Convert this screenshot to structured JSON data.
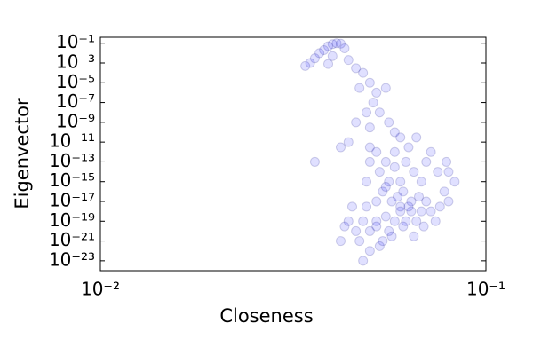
{
  "chart_data": {
    "type": "scatter",
    "xlabel": "Closeness",
    "ylabel": "Eigenvector",
    "xscale": "log",
    "yscale": "log",
    "xlim": [
      0.01,
      0.1
    ],
    "ylim": [
      1e-24,
      0.4
    ],
    "xticks": [
      {
        "value": 0.01,
        "label": "10⁻²"
      },
      {
        "value": 0.1,
        "label": "10⁻¹"
      }
    ],
    "yticks": [
      {
        "value": 0.1,
        "label": "10⁻¹"
      },
      {
        "value": 0.001,
        "label": "10⁻³"
      },
      {
        "value": 1e-05,
        "label": "10⁻⁵"
      },
      {
        "value": 1e-07,
        "label": "10⁻⁷"
      },
      {
        "value": 1e-09,
        "label": "10⁻⁹"
      },
      {
        "value": 1e-11,
        "label": "10⁻¹¹"
      },
      {
        "value": 1e-13,
        "label": "10⁻¹³"
      },
      {
        "value": 1e-15,
        "label": "10⁻¹⁵"
      },
      {
        "value": 1e-17,
        "label": "10⁻¹⁷"
      },
      {
        "value": 1e-19,
        "label": "10⁻¹⁹"
      },
      {
        "value": 1e-21,
        "label": "10⁻²¹"
      },
      {
        "value": 1e-23,
        "label": "10⁻²³"
      }
    ],
    "color": "#0000ff",
    "edgecolor": "#000080",
    "alpha": 0.12,
    "x": [
      0.04,
      0.041,
      0.039,
      0.042,
      0.038,
      0.037,
      0.036,
      0.035,
      0.034,
      0.04,
      0.043,
      0.044,
      0.046,
      0.039,
      0.048,
      0.05,
      0.047,
      0.052,
      0.055,
      0.051,
      0.049,
      0.046,
      0.053,
      0.056,
      0.05,
      0.058,
      0.06,
      0.044,
      0.042,
      0.036,
      0.052,
      0.055,
      0.058,
      0.062,
      0.065,
      0.06,
      0.056,
      0.053,
      0.05,
      0.049,
      0.054,
      0.057,
      0.061,
      0.064,
      0.068,
      0.07,
      0.072,
      0.075,
      0.08,
      0.078,
      0.052,
      0.058,
      0.063,
      0.066,
      0.05,
      0.055,
      0.06,
      0.044,
      0.046,
      0.048,
      0.05,
      0.052,
      0.054,
      0.056,
      0.058,
      0.06,
      0.062,
      0.064,
      0.066,
      0.068,
      0.07,
      0.072,
      0.074,
      0.047,
      0.05,
      0.053,
      0.057,
      0.061,
      0.065,
      0.069,
      0.045,
      0.049,
      0.055,
      0.059,
      0.063,
      0.067,
      0.052,
      0.048,
      0.042,
      0.043,
      0.076,
      0.08,
      0.083,
      0.079
    ],
    "values": [
      0.08,
      0.1,
      0.05,
      0.09,
      0.02,
      0.01,
      0.003,
      0.001,
      0.0005,
      0.005,
      0.03,
      0.002,
      0.0003,
      0.0008,
      0.0001,
      1e-05,
      3e-06,
      1e-06,
      3e-06,
      1e-07,
      1e-08,
      1e-09,
      1e-08,
      1e-09,
      3e-10,
      1e-10,
      3e-11,
      1e-11,
      3e-12,
      1e-13,
      1e-12,
      1e-13,
      1e-12,
      1e-13,
      1e-14,
      1e-15,
      1e-15,
      1e-14,
      1e-13,
      1e-15,
      1e-16,
      1e-17,
      1e-16,
      1e-17,
      1e-15,
      1e-13,
      1e-12,
      1e-14,
      1e-14,
      1e-16,
      1e-17,
      3e-14,
      3e-12,
      3e-11,
      3e-12,
      3e-16,
      3e-18,
      1e-19,
      1e-20,
      1e-19,
      1e-20,
      1e-19,
      1e-21,
      1e-20,
      1e-19,
      1e-18,
      1e-19,
      1e-18,
      1e-19,
      1e-18,
      1e-17,
      1e-18,
      1e-19,
      1e-21,
      1e-22,
      3e-22,
      3e-21,
      3e-20,
      3e-21,
      3e-20,
      3e-18,
      3e-18,
      3e-19,
      3e-17,
      3e-18,
      3e-17,
      3e-20,
      1e-23,
      1e-21,
      3e-20,
      3e-18,
      1e-17,
      1e-15,
      1e-13
    ]
  }
}
